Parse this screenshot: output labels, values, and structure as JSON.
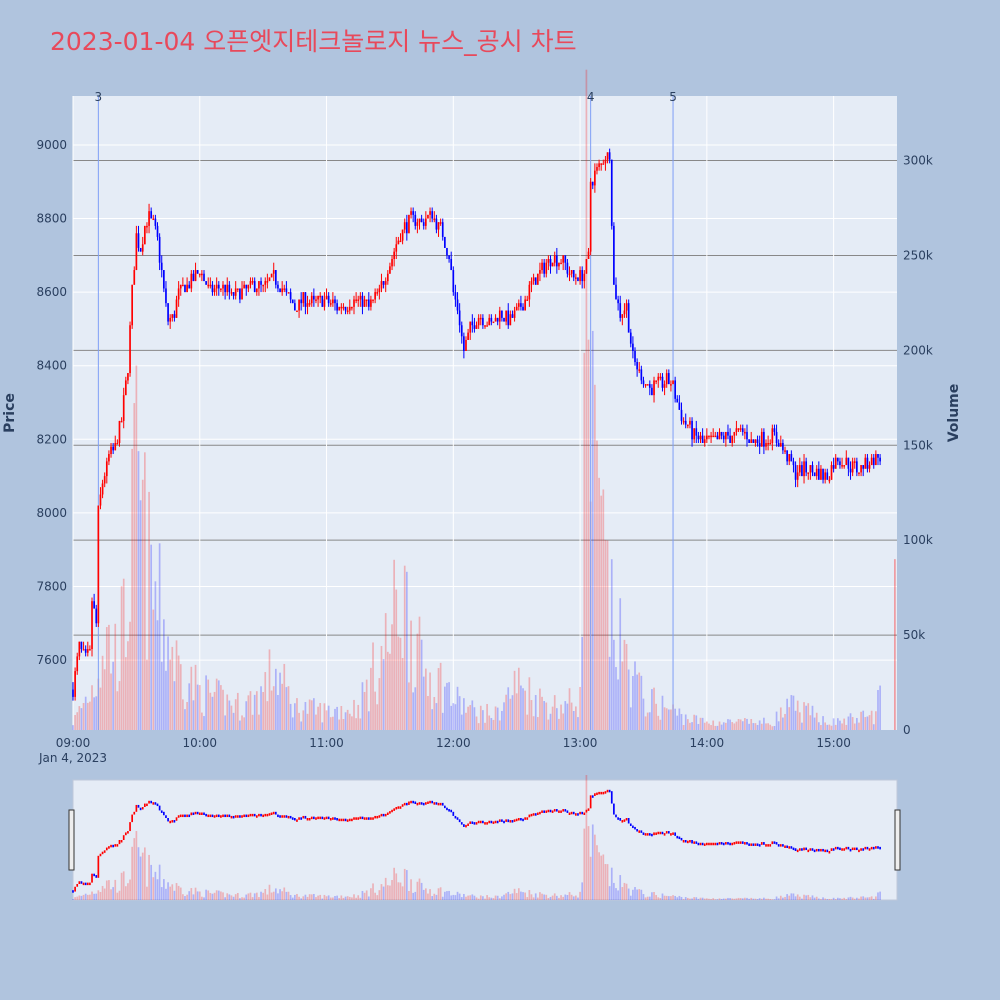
{
  "title": "2023-01-04 오픈엣지테크놀로지 뉴스_공시 차트",
  "chart_data": {
    "type": "candlestick",
    "title": "2023-01-04 오픈엣지테크놀로지 뉴스_공시 차트",
    "ylabel": "Price",
    "y2label": "Volume",
    "x_date_label": "Jan 4, 2023",
    "xticks": [
      "09:00",
      "10:00",
      "11:00",
      "12:00",
      "13:00",
      "14:00",
      "15:00"
    ],
    "yticks": [
      7600,
      7800,
      8000,
      8200,
      8400,
      8600,
      8800,
      9000
    ],
    "y2ticks": [
      "0",
      "50k",
      "100k",
      "150k",
      "200k",
      "250k",
      "300k"
    ],
    "y2tick_values": [
      0,
      50000,
      100000,
      150000,
      200000,
      250000,
      300000
    ],
    "ylim": [
      7410,
      9133
    ],
    "y2lim": [
      0,
      334000
    ],
    "xlim": [
      "09:00",
      "15:30"
    ],
    "up_color": "#ff0000",
    "down_color": "#0000ff",
    "grid": true,
    "rangeslider": true,
    "event_markers": [
      {
        "label": "3",
        "time": "09:12"
      },
      {
        "label": "4",
        "time": "13:05"
      },
      {
        "label": "5",
        "time": "13:44"
      }
    ],
    "price_path": [
      [
        "09:00",
        7520
      ],
      [
        "09:03",
        7640
      ],
      [
        "09:06",
        7600
      ],
      [
        "09:08",
        7620
      ],
      [
        "09:09",
        7760
      ],
      [
        "09:11",
        7700
      ],
      [
        "09:12",
        8000
      ],
      [
        "09:14",
        8080
      ],
      [
        "09:17",
        8150
      ],
      [
        "09:20",
        8180
      ],
      [
        "09:23",
        8250
      ],
      [
        "09:26",
        8400
      ],
      [
        "09:28",
        8600
      ],
      [
        "09:30",
        8750
      ],
      [
        "09:32",
        8720
      ],
      [
        "09:34",
        8780
      ],
      [
        "09:36",
        8800
      ],
      [
        "09:38",
        8780
      ],
      [
        "09:40",
        8740
      ],
      [
        "09:42",
        8650
      ],
      [
        "09:45",
        8520
      ],
      [
        "09:48",
        8540
      ],
      [
        "09:50",
        8600
      ],
      [
        "09:55",
        8620
      ],
      [
        "10:00",
        8660
      ],
      [
        "10:05",
        8600
      ],
      [
        "10:10",
        8620
      ],
      [
        "10:15",
        8590
      ],
      [
        "10:20",
        8600
      ],
      [
        "10:25",
        8620
      ],
      [
        "10:30",
        8610
      ],
      [
        "10:35",
        8640
      ],
      [
        "10:40",
        8600
      ],
      [
        "10:45",
        8560
      ],
      [
        "10:50",
        8580
      ],
      [
        "10:55",
        8570
      ],
      [
        "11:00",
        8580
      ],
      [
        "11:05",
        8560
      ],
      [
        "11:10",
        8570
      ],
      [
        "11:15",
        8580
      ],
      [
        "11:20",
        8560
      ],
      [
        "11:25",
        8600
      ],
      [
        "11:30",
        8680
      ],
      [
        "11:35",
        8760
      ],
      [
        "11:40",
        8800
      ],
      [
        "11:45",
        8790
      ],
      [
        "11:50",
        8810
      ],
      [
        "11:55",
        8760
      ],
      [
        "11:58",
        8700
      ],
      [
        "12:00",
        8600
      ],
      [
        "12:02",
        8560
      ],
      [
        "12:05",
        8440
      ],
      [
        "12:08",
        8500
      ],
      [
        "12:12",
        8540
      ],
      [
        "12:17",
        8510
      ],
      [
        "12:22",
        8540
      ],
      [
        "12:27",
        8520
      ],
      [
        "12:32",
        8560
      ],
      [
        "12:37",
        8620
      ],
      [
        "12:42",
        8660
      ],
      [
        "12:47",
        8700
      ],
      [
        "12:52",
        8680
      ],
      [
        "12:57",
        8640
      ],
      [
        "13:02",
        8650
      ],
      [
        "13:04",
        8700
      ],
      [
        "13:05",
        8900
      ],
      [
        "13:08",
        8930
      ],
      [
        "13:12",
        8970
      ],
      [
        "13:14",
        8980
      ],
      [
        "13:16",
        8620
      ],
      [
        "13:19",
        8540
      ],
      [
        "13:22",
        8560
      ],
      [
        "13:25",
        8420
      ],
      [
        "13:28",
        8380
      ],
      [
        "13:33",
        8340
      ],
      [
        "13:38",
        8350
      ],
      [
        "13:43",
        8360
      ],
      [
        "13:48",
        8260
      ],
      [
        "13:53",
        8220
      ],
      [
        "13:58",
        8190
      ],
      [
        "14:05",
        8200
      ],
      [
        "14:12",
        8210
      ],
      [
        "14:17",
        8220
      ],
      [
        "14:22",
        8190
      ],
      [
        "14:27",
        8200
      ],
      [
        "14:32",
        8210
      ],
      [
        "14:37",
        8160
      ],
      [
        "14:42",
        8110
      ],
      [
        "14:47",
        8120
      ],
      [
        "14:52",
        8110
      ],
      [
        "14:57",
        8100
      ],
      [
        "15:02",
        8150
      ],
      [
        "15:07",
        8130
      ],
      [
        "15:12",
        8120
      ],
      [
        "15:17",
        8140
      ],
      [
        "15:22",
        8150
      ]
    ],
    "volume_path": [
      [
        "09:00",
        5000
      ],
      [
        "09:10",
        30000
      ],
      [
        "09:15",
        60000
      ],
      [
        "09:20",
        50000
      ],
      [
        "09:25",
        70000
      ],
      [
        "09:30",
        160000
      ],
      [
        "09:33",
        130000
      ],
      [
        "09:36",
        100000
      ],
      [
        "09:40",
        80000
      ],
      [
        "09:45",
        60000
      ],
      [
        "09:50",
        40000
      ],
      [
        "10:00",
        25000
      ],
      [
        "10:10",
        20000
      ],
      [
        "10:20",
        15000
      ],
      [
        "10:30",
        25000
      ],
      [
        "10:35",
        40000
      ],
      [
        "10:45",
        15000
      ],
      [
        "11:00",
        12000
      ],
      [
        "11:15",
        15000
      ],
      [
        "11:30",
        60000
      ],
      [
        "11:35",
        90000
      ],
      [
        "11:40",
        70000
      ],
      [
        "11:45",
        40000
      ],
      [
        "11:55",
        30000
      ],
      [
        "12:00",
        20000
      ],
      [
        "12:10",
        12000
      ],
      [
        "12:20",
        10000
      ],
      [
        "12:30",
        30000
      ],
      [
        "12:40",
        20000
      ],
      [
        "12:50",
        15000
      ],
      [
        "13:00",
        20000
      ],
      [
        "13:03",
        300000
      ],
      [
        "13:06",
        170000
      ],
      [
        "13:10",
        120000
      ],
      [
        "13:15",
        70000
      ],
      [
        "13:20",
        50000
      ],
      [
        "13:30",
        20000
      ],
      [
        "13:40",
        15000
      ],
      [
        "13:50",
        8000
      ],
      [
        "14:00",
        5000
      ],
      [
        "14:30",
        5000
      ],
      [
        "14:40",
        15000
      ],
      [
        "15:00",
        5000
      ],
      [
        "15:20",
        10000
      ],
      [
        "15:29",
        90000
      ]
    ]
  }
}
